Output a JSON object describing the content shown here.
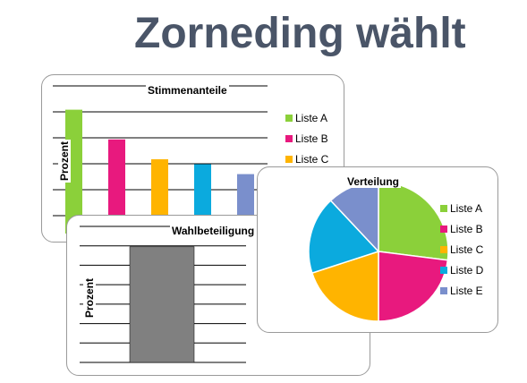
{
  "page": {
    "title": "Zorneding wählt"
  },
  "chart_data": [
    {
      "type": "bar",
      "title": "Stimmenanteile",
      "ylabel": "Prozent",
      "categories": [
        "Liste A",
        "Liste B",
        "Liste C",
        "Liste D",
        "Liste E"
      ],
      "values": [
        100,
        76,
        60,
        56,
        48
      ],
      "ylim": [
        0,
        110
      ],
      "colors": [
        "#8bd03a",
        "#e8197e",
        "#ffb400",
        "#0baade",
        "#7a8fcc"
      ],
      "grid": true,
      "legend_position": "right"
    },
    {
      "type": "bar",
      "title": "Wahlbeteiligung",
      "ylabel": "Prozent",
      "categories": [
        ""
      ],
      "values": [
        85
      ],
      "ylim": [
        0,
        100
      ],
      "colors": [
        "#808080"
      ],
      "grid": true
    },
    {
      "type": "pie",
      "title": "Verteilung",
      "categories": [
        "Liste A",
        "Liste B",
        "Liste C",
        "Liste D",
        "Liste E"
      ],
      "values": [
        27,
        23,
        20,
        18,
        12
      ],
      "colors": [
        "#8bd03a",
        "#e8197e",
        "#ffb400",
        "#0baade",
        "#7a8fcc"
      ],
      "legend_position": "right"
    }
  ]
}
